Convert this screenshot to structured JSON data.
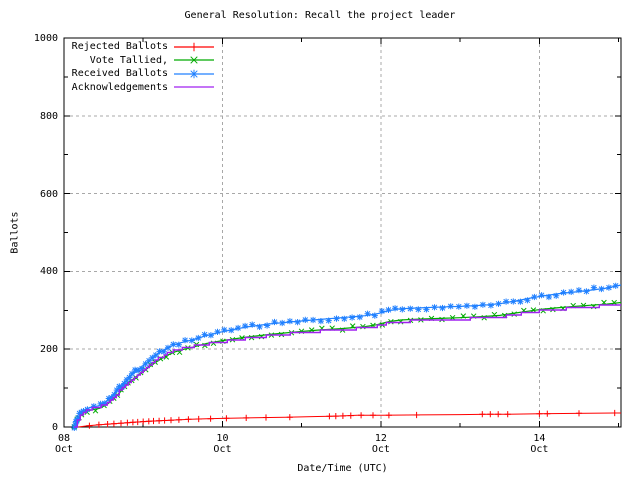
{
  "title": "General Resolution: Recall the project leader",
  "axes": {
    "x_label": "Date/Time (UTC)",
    "y_label": "Ballots",
    "x_ticks": [
      {
        "day": "08",
        "month": "Oct",
        "value": 8
      },
      {
        "day": "10",
        "month": "Oct",
        "value": 10
      },
      {
        "day": "12",
        "month": "Oct",
        "value": 12
      },
      {
        "day": "14",
        "month": "Oct",
        "value": 14
      }
    ],
    "x_minor_days": [
      9,
      11,
      13,
      15
    ],
    "y_ticks": [
      0,
      200,
      400,
      600,
      800,
      1000
    ],
    "y_minor_ticks": [
      100,
      300,
      500,
      700,
      900
    ],
    "grid": "dashed gray at major ticks"
  },
  "colors": {
    "background": "#ffffff",
    "axis": "#000000",
    "grid": "#a8a8a8",
    "rejected": "#ff0000",
    "tallied": "#00aa00",
    "received": "#2080ff",
    "acknowledgements": "#a020f0"
  },
  "chart_data": {
    "type": "line",
    "title": "General Resolution: Recall the project leader",
    "xlabel": "Date/Time (UTC)",
    "ylabel": "Ballots",
    "x_unit": "day of October (UTC)",
    "x_range_days": [
      8.0,
      15.03
    ],
    "ylim": [
      0,
      1000
    ],
    "legend_position": "top-left inside",
    "series": [
      {
        "name": "Rejected Ballots",
        "color": "#ff0000",
        "marker": "plus",
        "days": [
          8.18,
          8.3,
          8.45,
          8.6,
          8.8,
          9.0,
          9.2,
          9.4,
          9.6,
          9.8,
          10.0,
          10.4,
          10.8,
          11.2,
          11.45,
          11.7,
          12.0,
          12.5,
          13.0,
          13.35,
          13.6,
          14.0,
          14.45,
          14.95,
          15.03
        ],
        "values": [
          0,
          3,
          6,
          8,
          11,
          14,
          16,
          18,
          20,
          21,
          22,
          24,
          25,
          27,
          28,
          30,
          30,
          31,
          32,
          33,
          33,
          34,
          35,
          36,
          36
        ],
        "marker_days": [
          8.32,
          8.44,
          8.55,
          8.63,
          8.72,
          8.8,
          8.87,
          8.93,
          9.0,
          9.07,
          9.13,
          9.2,
          9.27,
          9.35,
          9.45,
          9.57,
          9.7,
          9.85,
          10.05,
          10.3,
          10.55,
          10.85,
          11.35,
          11.43,
          11.52,
          11.62,
          11.75,
          11.9,
          12.1,
          12.45,
          13.28,
          13.38,
          13.48,
          13.6,
          14.0,
          14.1,
          14.5,
          14.95
        ]
      },
      {
        "name": "Vote Tallied,",
        "color": "#00aa00",
        "marker": "cross",
        "days": [
          8.13,
          8.17,
          8.22,
          8.28,
          8.35,
          8.45,
          8.55,
          8.62,
          8.7,
          8.78,
          8.85,
          8.92,
          9.0,
          9.06,
          9.12,
          9.2,
          9.3,
          9.4,
          9.5,
          9.62,
          9.8,
          10.0,
          10.3,
          10.6,
          10.9,
          11.2,
          11.5,
          11.8,
          11.95,
          12.1,
          12.25,
          12.45,
          12.7,
          13.0,
          13.3,
          13.5,
          13.7,
          13.9,
          14.05,
          14.25,
          14.45,
          14.65,
          14.85,
          15.03
        ],
        "values": [
          0,
          18,
          32,
          40,
          44,
          48,
          59,
          72,
          88,
          105,
          119,
          131,
          142,
          152,
          161,
          172,
          184,
          193,
          199,
          205,
          215,
          222,
          231,
          238,
          244,
          249,
          253,
          258,
          263,
          271,
          275,
          277,
          279,
          281,
          284,
          287,
          293,
          299,
          303,
          307,
          310,
          313,
          316,
          320
        ]
      },
      {
        "name": "Received Ballots",
        "color": "#2080ff",
        "marker": "star",
        "days": [
          8.13,
          8.17,
          8.22,
          8.28,
          8.35,
          8.45,
          8.55,
          8.62,
          8.7,
          8.78,
          8.85,
          8.92,
          9.0,
          9.06,
          9.12,
          9.2,
          9.3,
          9.4,
          9.5,
          9.62,
          9.8,
          10.0,
          10.3,
          10.6,
          10.9,
          11.2,
          11.5,
          11.8,
          11.95,
          12.1,
          12.25,
          12.45,
          12.7,
          13.0,
          13.3,
          13.5,
          13.7,
          13.9,
          14.05,
          14.25,
          14.45,
          14.65,
          14.85,
          15.03
        ],
        "values": [
          0,
          22,
          38,
          47,
          51,
          55,
          68,
          82,
          100,
          118,
          133,
          146,
          158,
          168,
          178,
          190,
          203,
          212,
          218,
          224,
          235,
          245,
          257,
          265,
          271,
          276,
          281,
          286,
          291,
          299,
          304,
          306,
          308,
          310,
          313,
          317,
          324,
          332,
          337,
          343,
          347,
          352,
          357,
          365
        ]
      },
      {
        "name": "Acknowledgements",
        "color": "#a020f0",
        "marker": "none",
        "days": [
          8.13,
          8.17,
          8.22,
          8.28,
          8.35,
          8.45,
          8.55,
          8.62,
          8.7,
          8.78,
          8.85,
          8.92,
          9.0,
          9.06,
          9.12,
          9.2,
          9.3,
          9.4,
          9.5,
          9.62,
          9.8,
          10.0,
          10.3,
          10.6,
          10.9,
          11.2,
          11.5,
          11.8,
          11.95,
          12.1,
          12.25,
          12.45,
          12.7,
          13.0,
          13.3,
          13.5,
          13.7,
          13.9,
          14.05,
          14.25,
          14.45,
          14.65,
          14.85,
          15.03
        ],
        "values": [
          0,
          20,
          35,
          43,
          47,
          51,
          63,
          76,
          93,
          110,
          124,
          136,
          147,
          157,
          166,
          177,
          189,
          197,
          203,
          208,
          214,
          219,
          228,
          235,
          241,
          246,
          250,
          255,
          260,
          267,
          271,
          273,
          275,
          277,
          280,
          283,
          289,
          295,
          299,
          303,
          306,
          309,
          312,
          315
        ]
      }
    ]
  }
}
